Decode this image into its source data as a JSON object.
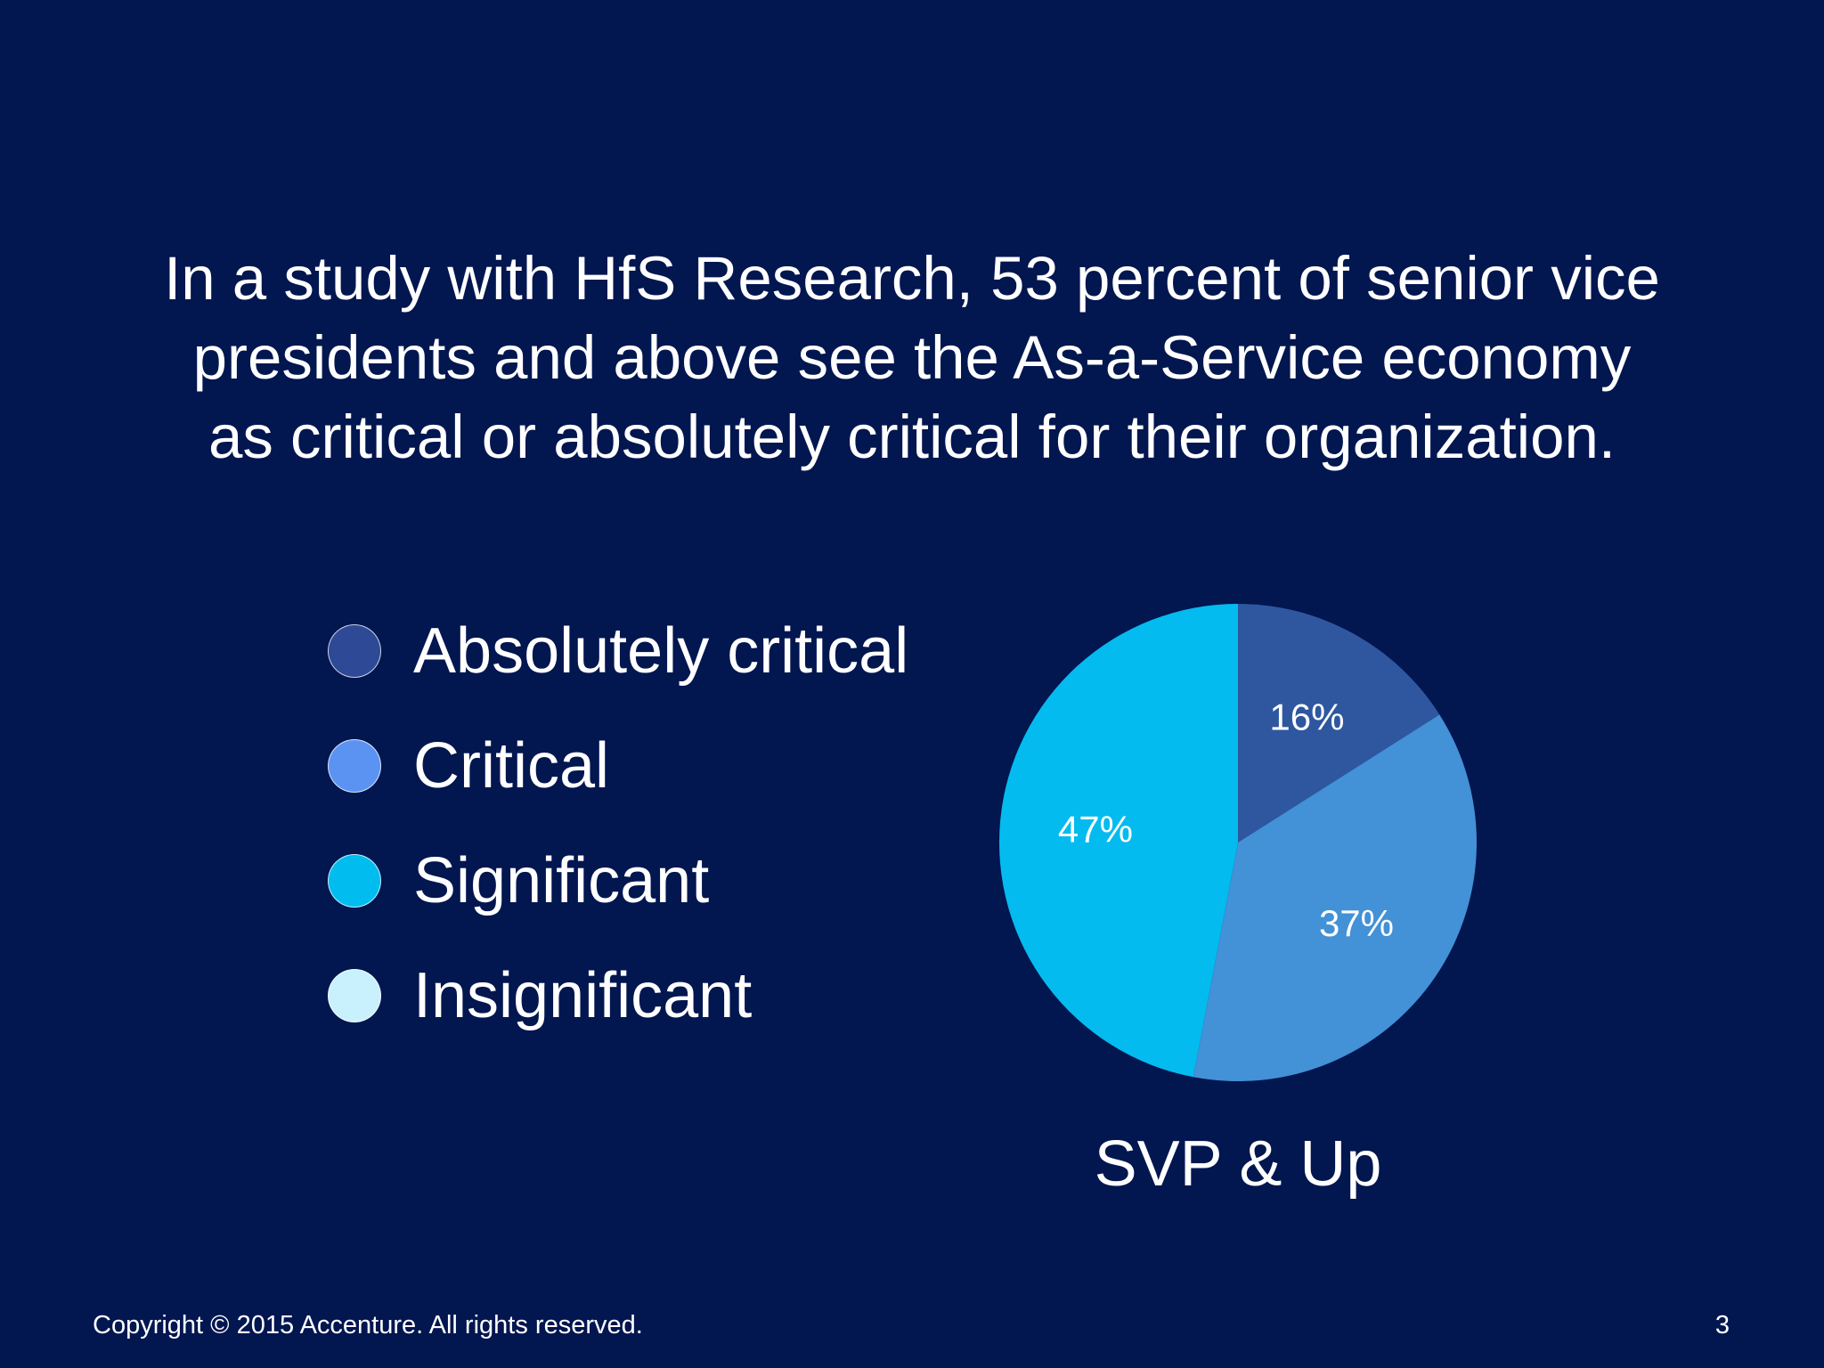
{
  "slide": {
    "headline_lines": [
      "In a study with HfS Research, 53 percent of senior vice",
      "presidents and above see the As-a-Service economy",
      "as critical or absolutely critical for their organization."
    ],
    "footer_copyright": "Copyright © 2015 Accenture. All rights reserved.",
    "page_number": "3"
  },
  "legend": {
    "items": [
      {
        "label": "Absolutely critical",
        "color": "#2E4A96"
      },
      {
        "label": "Critical",
        "color": "#5B93F2"
      },
      {
        "label": "Significant",
        "color": "#00BCEF"
      },
      {
        "label": "Insignificant",
        "color": "#C9F1FD"
      }
    ]
  },
  "chart_data": {
    "type": "pie",
    "title": "SVP & Up",
    "slices": [
      {
        "name": "Absolutely critical",
        "value": 16,
        "label": "16%",
        "color": "#2E57A0"
      },
      {
        "name": "Critical",
        "value": 37,
        "label": "37%",
        "color": "#4391D6"
      },
      {
        "name": "Significant",
        "value": 47,
        "label": "47%",
        "color": "#04BBF0"
      },
      {
        "name": "Insignificant",
        "value": 0,
        "label": "",
        "color": "#C9F1FD"
      }
    ],
    "start_angle": "12 o'clock",
    "direction": "clockwise"
  }
}
